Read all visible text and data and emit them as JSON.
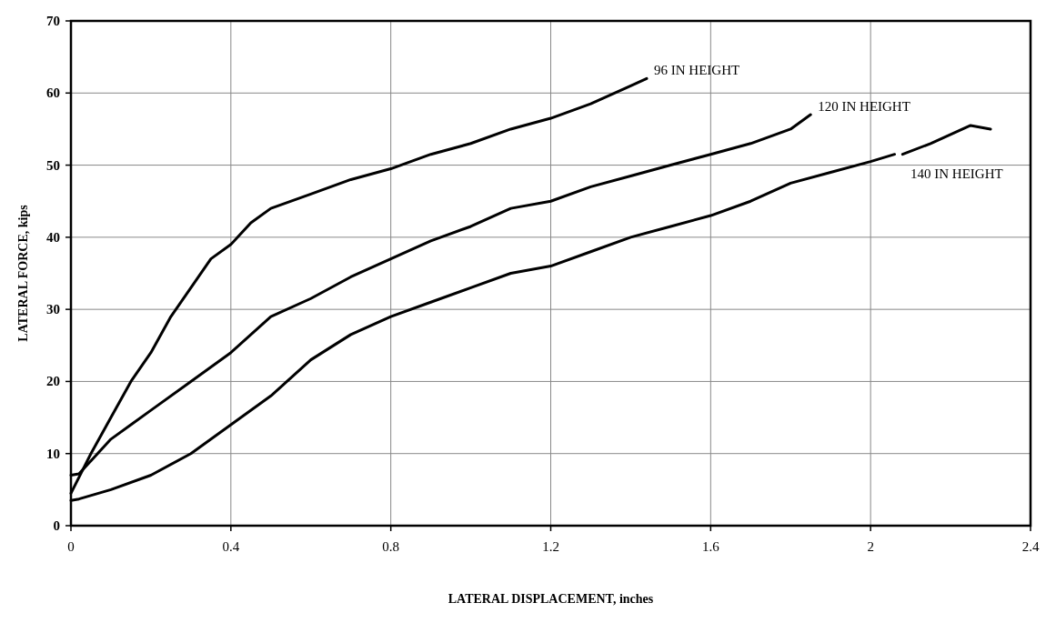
{
  "chart_data": {
    "type": "line",
    "xlabel": "LATERAL DISPLACEMENT, inches",
    "ylabel": "LATERAL FORCE, kips",
    "xlim": [
      0,
      2.4
    ],
    "xticks": [
      0,
      0.4,
      0.8,
      1.2,
      1.6,
      2,
      2.4
    ],
    "ylim": [
      0,
      70
    ],
    "yticks": [
      0,
      10,
      20,
      30,
      40,
      50,
      60,
      70
    ],
    "grid": true,
    "marker": "none",
    "line_style": "solid",
    "series": [
      {
        "name": "96 IN HEIGHT",
        "color": "#000000",
        "x": [
          0,
          0.05,
          0.1,
          0.15,
          0.2,
          0.25,
          0.3,
          0.35,
          0.4,
          0.45,
          0.5,
          0.6,
          0.7,
          0.8,
          0.9,
          1.0,
          1.1,
          1.2,
          1.3,
          1.4,
          1.44
        ],
        "values": [
          4.5,
          10,
          15,
          20,
          24,
          29,
          33,
          37,
          39,
          42,
          44,
          46,
          48,
          49.5,
          51.5,
          53,
          55,
          56.5,
          58.5,
          61,
          62
        ]
      },
      {
        "name": "120 IN HEIGHT",
        "color": "#000000",
        "x": [
          0,
          0.02,
          0.05,
          0.1,
          0.15,
          0.2,
          0.3,
          0.4,
          0.5,
          0.6,
          0.7,
          0.8,
          0.9,
          1.0,
          1.1,
          1.2,
          1.3,
          1.4,
          1.5,
          1.6,
          1.7,
          1.8,
          1.85
        ],
        "values": [
          7,
          7.2,
          9,
          12,
          14,
          16,
          20,
          24,
          29,
          31.5,
          34.5,
          37,
          39.5,
          41.5,
          44,
          45,
          47,
          48.5,
          50,
          51.5,
          53,
          55,
          57
        ]
      },
      {
        "name": "140 IN HEIGHT",
        "color": "#000000",
        "x": [
          0,
          0.02,
          0.1,
          0.2,
          0.3,
          0.4,
          0.5,
          0.6,
          0.7,
          0.8,
          0.9,
          1.0,
          1.1,
          1.2,
          1.3,
          1.4,
          1.5,
          1.6,
          1.7,
          1.8,
          1.9,
          2.0,
          2.06,
          2.07,
          2.08,
          2.15,
          2.25,
          2.3
        ],
        "values": [
          3.5,
          3.7,
          5,
          7,
          10,
          14,
          18,
          23,
          26.5,
          29,
          31,
          33,
          35,
          36,
          38,
          40,
          41.5,
          43,
          45,
          47.5,
          49,
          50.5,
          51.5,
          null,
          51.5,
          53,
          55.5,
          55
        ]
      }
    ]
  }
}
